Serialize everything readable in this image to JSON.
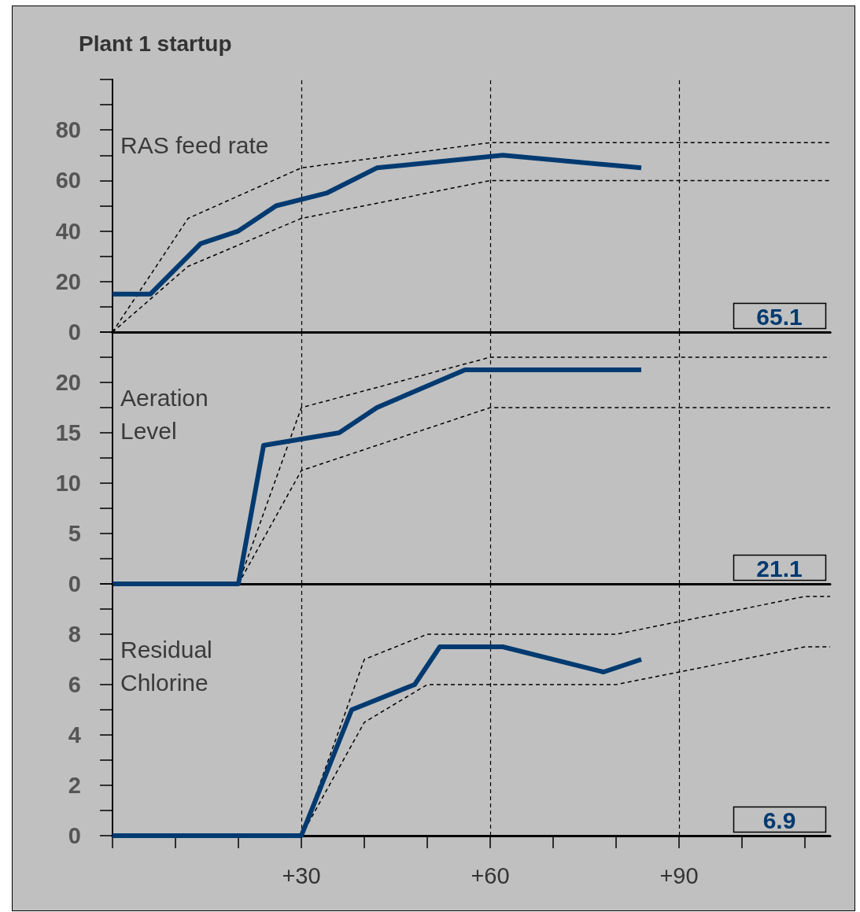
{
  "chart_data": [
    {
      "type": "line",
      "title": "Plant 1 startup",
      "annotations": [
        "RAS feed rate",
        "65.1"
      ],
      "xlim": [
        0,
        114
      ],
      "ylim": [
        0,
        100
      ],
      "yticks": [
        0,
        {
          "value": 10,
          "label": null
        },
        20,
        {
          "value": 30,
          "label": null
        },
        40,
        {
          "value": 50,
          "label": null
        },
        60,
        {
          "value": 70,
          "label": null
        },
        80,
        {
          "value": 90,
          "label": null
        },
        {
          "value": 100,
          "label": null
        }
      ],
      "tick_labels": "y",
      "grid": false,
      "marker": "none",
      "line_style": "solid",
      "ref_lines": [
        {
          "axis": "x",
          "value": 30,
          "color": "#000000",
          "line_style": "dashed"
        },
        {
          "axis": "x",
          "value": 60,
          "color": "#000000",
          "line_style": "dashed"
        },
        {
          "axis": "x",
          "value": 90,
          "color": "#000000",
          "line_style": "dashed"
        }
      ],
      "series": [
        {
          "color": "#000000",
          "line_style": "dashed",
          "x": [
            0,
            12,
            30,
            60,
            114
          ],
          "values": [
            0,
            45,
            65,
            75,
            75
          ]
        },
        {
          "color": "#000000",
          "line_style": "dashed",
          "x": [
            0,
            12,
            30,
            60,
            62,
            114
          ],
          "values": [
            0,
            26,
            45,
            60,
            60,
            60
          ]
        },
        {
          "color": "#003a70",
          "x": [
            0,
            6,
            14,
            20,
            26,
            34,
            42,
            62,
            84
          ],
          "values": [
            15,
            15,
            35,
            40,
            50,
            55,
            65,
            70,
            65
          ]
        }
      ]
    },
    {
      "type": "line",
      "annotations": [
        "Aeration\nLevel",
        "21.1"
      ],
      "xlim": [
        0,
        114
      ],
      "ylim": [
        0,
        25
      ],
      "yticks": [
        0,
        {
          "value": 2.5,
          "label": null
        },
        5,
        {
          "value": 7.5,
          "label": null
        },
        10,
        {
          "value": 12.5,
          "label": null
        },
        15,
        {
          "value": 17.5,
          "label": null
        },
        20,
        {
          "value": 22.5,
          "label": null
        },
        {
          "value": 25,
          "label": null
        }
      ],
      "tick_labels": "y",
      "grid": false,
      "marker": "none",
      "line_style": "solid",
      "ref_lines": [
        {
          "axis": "x",
          "value": 30,
          "color": "#000000",
          "line_style": "dashed"
        },
        {
          "axis": "x",
          "value": 60,
          "color": "#000000",
          "line_style": "dashed"
        },
        {
          "axis": "x",
          "value": 90,
          "color": "#000000",
          "line_style": "dashed"
        }
      ],
      "series": [
        {
          "color": "#000000",
          "line_style": "dashed",
          "x": [
            20,
            30,
            60,
            114
          ],
          "values": [
            0,
            17.5,
            22.5,
            22.5
          ]
        },
        {
          "color": "#000000",
          "line_style": "dashed",
          "x": [
            20,
            30,
            60,
            114
          ],
          "values": [
            0,
            11.25,
            17.5,
            17.5
          ]
        },
        {
          "color": "#003a70",
          "x": [
            0,
            20,
            24,
            36,
            42,
            56,
            84
          ],
          "values": [
            0,
            0,
            13.75,
            15,
            17.5,
            21.25,
            21.25
          ]
        }
      ]
    },
    {
      "type": "line",
      "annotations": [
        "Residual\nChlorine",
        "6.9"
      ],
      "xlim": [
        0,
        114
      ],
      "xticks": [
        {
          "value": 0,
          "label": null
        },
        {
          "value": 10,
          "label": null
        },
        {
          "value": 20,
          "label": null
        },
        {
          "value": 30,
          "label": "+30"
        },
        {
          "value": 40,
          "label": null
        },
        {
          "value": 50,
          "label": null
        },
        {
          "value": 60,
          "label": "+60"
        },
        {
          "value": 70,
          "label": null
        },
        {
          "value": 80,
          "label": null
        },
        {
          "value": 90,
          "label": "+90"
        },
        {
          "value": 100,
          "label": null
        },
        {
          "value": 110,
          "label": null
        }
      ],
      "ylim": [
        0,
        10
      ],
      "yticks": [
        0,
        {
          "value": 1,
          "label": null
        },
        2,
        {
          "value": 3,
          "label": null
        },
        4,
        {
          "value": 5,
          "label": null
        },
        6,
        {
          "value": 7,
          "label": null
        },
        8,
        {
          "value": 9,
          "label": null
        },
        {
          "value": 10,
          "label": null
        }
      ],
      "grid": false,
      "marker": "none",
      "line_style": "solid",
      "ref_lines": [
        {
          "axis": "x",
          "value": 30,
          "color": "#000000",
          "line_style": "dashed"
        },
        {
          "axis": "x",
          "value": 60,
          "color": "#000000",
          "line_style": "dashed"
        },
        {
          "axis": "x",
          "value": 90,
          "color": "#000000",
          "line_style": "dashed"
        }
      ],
      "series": [
        {
          "color": "#000000",
          "line_style": "dashed",
          "x": [
            30,
            40,
            50,
            80,
            110,
            114
          ],
          "values": [
            0,
            7,
            8,
            8,
            9.5,
            9.5
          ]
        },
        {
          "color": "#000000",
          "line_style": "dashed",
          "x": [
            30,
            40,
            50,
            80,
            110,
            114
          ],
          "values": [
            0,
            4.5,
            6,
            6,
            7.5,
            7.5
          ]
        },
        {
          "color": "#003a70",
          "x": [
            0,
            30,
            38,
            48,
            52,
            62,
            78,
            84
          ],
          "values": [
            0,
            0,
            5,
            6,
            7.5,
            7.5,
            6.5,
            7
          ]
        }
      ]
    }
  ]
}
